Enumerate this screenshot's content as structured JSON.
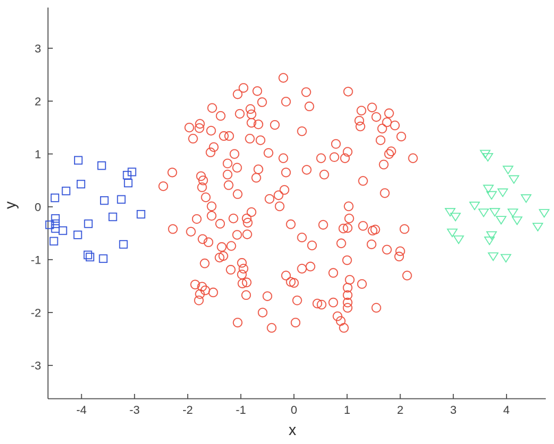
{
  "figure": {
    "background": "#ffffff"
  },
  "chart_data": {
    "type": "scatter",
    "title": "",
    "xlabel": "x",
    "ylabel": "y",
    "xlim": [
      -4.63,
      4.74
    ],
    "ylim": [
      -3.63,
      3.77
    ],
    "xticks": [
      "-4",
      "-3",
      "-2",
      "-1",
      "0",
      "1",
      "2",
      "3",
      "4"
    ],
    "xtick_values": [
      -4,
      -3,
      -2,
      -1,
      0,
      1,
      2,
      3,
      4
    ],
    "yticks": [
      "-3",
      "-2",
      "-1",
      "0",
      "1",
      "2",
      "3"
    ],
    "ytick_values": [
      -3,
      -2,
      -1,
      0,
      1,
      2,
      3
    ],
    "grid": false,
    "legend": null,
    "axis_color": "#3a3a3a",
    "tick_label_color": "#3a3a3a",
    "series": [
      {
        "name": "left-cluster-blue-squares",
        "marker": "square",
        "color": "#2e4fd7",
        "points": [
          [
            -4.06,
            0.88
          ],
          [
            -3.62,
            0.78
          ],
          [
            -3.05,
            0.66
          ],
          [
            -3.14,
            0.6
          ],
          [
            -3.12,
            0.45
          ],
          [
            -4.01,
            0.43
          ],
          [
            -4.29,
            0.3
          ],
          [
            -4.5,
            0.17
          ],
          [
            -3.57,
            0.12
          ],
          [
            -3.25,
            0.14
          ],
          [
            -3.41,
            -0.19
          ],
          [
            -2.88,
            -0.14
          ],
          [
            -4.49,
            -0.22
          ],
          [
            -4.49,
            -0.32
          ],
          [
            -4.49,
            -0.41
          ],
          [
            -4.6,
            -0.34
          ],
          [
            -4.35,
            -0.45
          ],
          [
            -3.87,
            -0.32
          ],
          [
            -4.07,
            -0.53
          ],
          [
            -4.52,
            -0.65
          ],
          [
            -3.88,
            -0.91
          ],
          [
            -3.21,
            -0.71
          ],
          [
            -3.84,
            -0.95
          ],
          [
            -3.59,
            -0.98
          ]
        ]
      },
      {
        "name": "center-cluster-red-circles",
        "marker": "circle",
        "color": "#ec4c3a",
        "points": [
          [
            -0.2,
            2.44
          ],
          [
            -0.95,
            2.25
          ],
          [
            -1.06,
            2.13
          ],
          [
            -0.69,
            2.19
          ],
          [
            -0.6,
            1.98
          ],
          [
            -0.15,
            1.99
          ],
          [
            -1.54,
            1.87
          ],
          [
            -1.38,
            1.72
          ],
          [
            -0.82,
            1.85
          ],
          [
            -1.02,
            1.76
          ],
          [
            -0.8,
            1.75
          ],
          [
            -1.77,
            1.57
          ],
          [
            -1.97,
            1.5
          ],
          [
            -1.78,
            1.49
          ],
          [
            -0.8,
            1.59
          ],
          [
            -0.67,
            1.56
          ],
          [
            -0.36,
            1.55
          ],
          [
            -1.56,
            1.44
          ],
          [
            -1.9,
            1.29
          ],
          [
            -1.32,
            1.34
          ],
          [
            -1.22,
            1.34
          ],
          [
            -0.83,
            1.29
          ],
          [
            -0.63,
            1.26
          ],
          [
            -1.51,
            1.13
          ],
          [
            -1.57,
            1.03
          ],
          [
            -0.48,
            1.02
          ],
          [
            -1.12,
            1.0
          ],
          [
            -1.25,
            0.82
          ],
          [
            -1.07,
            0.74
          ],
          [
            -2.29,
            0.65
          ],
          [
            -1.25,
            0.61
          ],
          [
            -0.67,
            0.71
          ],
          [
            -0.71,
            0.55
          ],
          [
            -1.75,
            0.58
          ],
          [
            -1.71,
            0.5
          ],
          [
            -2.46,
            0.39
          ],
          [
            -1.73,
            0.37
          ],
          [
            -1.23,
            0.41
          ],
          [
            -1.06,
            0.24
          ],
          [
            -0.18,
            0.32
          ],
          [
            -0.2,
            0.92
          ],
          [
            0.23,
            2.17
          ],
          [
            1.02,
            2.18
          ],
          [
            0.29,
            1.9
          ],
          [
            1.47,
            1.88
          ],
          [
            1.27,
            1.82
          ],
          [
            1.79,
            1.77
          ],
          [
            1.55,
            1.7
          ],
          [
            1.23,
            1.63
          ],
          [
            1.75,
            1.6
          ],
          [
            1.9,
            1.54
          ],
          [
            1.25,
            1.52
          ],
          [
            1.66,
            1.48
          ],
          [
            0.15,
            1.43
          ],
          [
            2.02,
            1.33
          ],
          [
            1.63,
            1.26
          ],
          [
            0.79,
            1.19
          ],
          [
            1.83,
            1.05
          ],
          [
            1.79,
            1.0
          ],
          [
            1.01,
            1.04
          ],
          [
            0.76,
            0.94
          ],
          [
            0.51,
            0.92
          ],
          [
            0.96,
            0.92
          ],
          [
            2.24,
            0.92
          ],
          [
            1.69,
            0.8
          ],
          [
            0.24,
            0.7
          ],
          [
            0.57,
            0.61
          ],
          [
            1.3,
            0.49
          ],
          [
            -0.15,
            0.65
          ],
          [
            1.71,
            0.26
          ],
          [
            -1.66,
            0.18
          ],
          [
            -0.46,
            0.15
          ],
          [
            -0.27,
            0.01
          ],
          [
            -0.29,
            0.22
          ],
          [
            -1.55,
            0.01
          ],
          [
            -1.55,
            -0.17
          ],
          [
            -1.83,
            -0.23
          ],
          [
            -1.39,
            -0.32
          ],
          [
            -0.8,
            -0.1
          ],
          [
            -1.14,
            -0.22
          ],
          [
            -0.89,
            -0.22
          ],
          [
            -0.87,
            -0.3
          ],
          [
            -2.28,
            -0.42
          ],
          [
            -1.94,
            -0.47
          ],
          [
            -1.07,
            -0.53
          ],
          [
            -0.88,
            -0.52
          ],
          [
            -1.72,
            -0.61
          ],
          [
            -1.61,
            -0.67
          ],
          [
            -1.36,
            -0.76
          ],
          [
            -1.18,
            -0.74
          ],
          [
            -1.4,
            -0.96
          ],
          [
            -1.33,
            -0.93
          ],
          [
            -1.68,
            -1.07
          ],
          [
            -0.98,
            -1.06
          ],
          [
            -0.95,
            -1.17
          ],
          [
            -0.98,
            -1.28
          ],
          [
            -1.19,
            -1.19
          ],
          [
            -0.89,
            -1.43
          ],
          [
            -0.97,
            -1.45
          ],
          [
            -1.86,
            -1.47
          ],
          [
            -1.73,
            -1.51
          ],
          [
            -1.67,
            -1.58
          ],
          [
            -1.52,
            -1.62
          ],
          [
            -1.77,
            -1.65
          ],
          [
            -1.79,
            -1.77
          ],
          [
            -0.9,
            -1.67
          ],
          [
            -0.5,
            -1.69
          ],
          [
            -0.59,
            -2.0
          ],
          [
            -1.06,
            -2.19
          ],
          [
            -0.42,
            -2.29
          ],
          [
            1.03,
            0.01
          ],
          [
            1.04,
            -0.22
          ],
          [
            -0.06,
            -0.33
          ],
          [
            0.55,
            -0.34
          ],
          [
            0.93,
            -0.41
          ],
          [
            1.01,
            -0.4
          ],
          [
            1.3,
            -0.36
          ],
          [
            1.48,
            -0.45
          ],
          [
            1.53,
            -0.43
          ],
          [
            2.08,
            -0.42
          ],
          [
            0.15,
            -0.58
          ],
          [
            0.34,
            -0.73
          ],
          [
            0.89,
            -0.69
          ],
          [
            1.46,
            -0.71
          ],
          [
            1.75,
            -0.81
          ],
          [
            2.0,
            -0.84
          ],
          [
            1.98,
            -0.94
          ],
          [
            1.0,
            -1.01
          ],
          [
            0.15,
            -1.17
          ],
          [
            0.31,
            -1.13
          ],
          [
            2.13,
            -1.3
          ],
          [
            -0.15,
            -1.3
          ],
          [
            -0.06,
            -1.42
          ],
          [
            0.0,
            -1.44
          ],
          [
            0.74,
            -1.25
          ],
          [
            1.05,
            -1.38
          ],
          [
            1.28,
            -1.46
          ],
          [
            1.01,
            -1.53
          ],
          [
            1.01,
            -1.67
          ],
          [
            0.06,
            -1.77
          ],
          [
            0.44,
            -1.83
          ],
          [
            0.52,
            -1.85
          ],
          [
            0.74,
            -1.81
          ],
          [
            1.01,
            -1.81
          ],
          [
            1.01,
            -1.91
          ],
          [
            1.55,
            -1.91
          ],
          [
            0.82,
            -2.07
          ],
          [
            0.88,
            -2.16
          ],
          [
            0.03,
            -2.19
          ],
          [
            0.94,
            -2.29
          ]
        ]
      },
      {
        "name": "right-cluster-green-triangles",
        "marker": "triangle-down",
        "color": "#5ce8a4",
        "points": [
          [
            3.6,
            1.01
          ],
          [
            3.65,
            0.95
          ],
          [
            4.03,
            0.71
          ],
          [
            4.14,
            0.53
          ],
          [
            3.66,
            0.35
          ],
          [
            3.72,
            0.23
          ],
          [
            3.93,
            0.28
          ],
          [
            4.37,
            0.17
          ],
          [
            3.4,
            0.03
          ],
          [
            2.94,
            -0.09
          ],
          [
            3.04,
            -0.18
          ],
          [
            3.57,
            -0.1
          ],
          [
            3.78,
            -0.09
          ],
          [
            4.12,
            -0.1
          ],
          [
            4.71,
            -0.11
          ],
          [
            3.9,
            -0.24
          ],
          [
            4.2,
            -0.25
          ],
          [
            4.59,
            -0.37
          ],
          [
            2.98,
            -0.48
          ],
          [
            3.1,
            -0.61
          ],
          [
            3.72,
            -0.53
          ],
          [
            3.68,
            -0.63
          ],
          [
            3.75,
            -0.93
          ],
          [
            3.99,
            -0.96
          ]
        ]
      }
    ]
  }
}
